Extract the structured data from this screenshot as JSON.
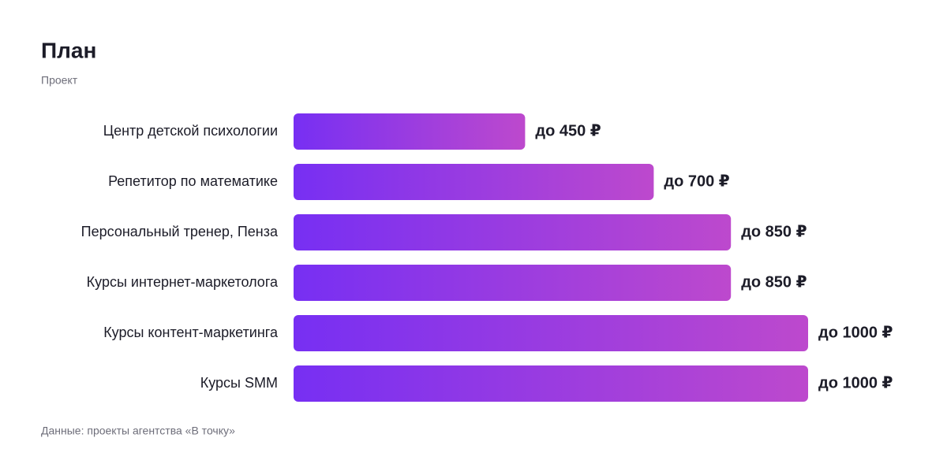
{
  "chart_data": {
    "type": "hbar",
    "title": "План",
    "subtitle": "Проект",
    "categories": [
      "Центр детской психологии",
      "Репетитор по математике",
      "Персональный тренер, Пенза",
      "Курсы интернет-маркетолога",
      "Курсы контент-маркетинга",
      "Курсы SMM"
    ],
    "values": [
      450,
      700,
      850,
      850,
      1000,
      1000
    ],
    "value_labels": [
      "до 450 ₽",
      "до 700 ₽",
      "до 850 ₽",
      "до 850 ₽",
      "до 1000 ₽",
      "до 1000 ₽"
    ],
    "gradient": [
      "#772ff3",
      "#bd49cd"
    ],
    "source": "Данные: проекты агентства «В точку»"
  }
}
